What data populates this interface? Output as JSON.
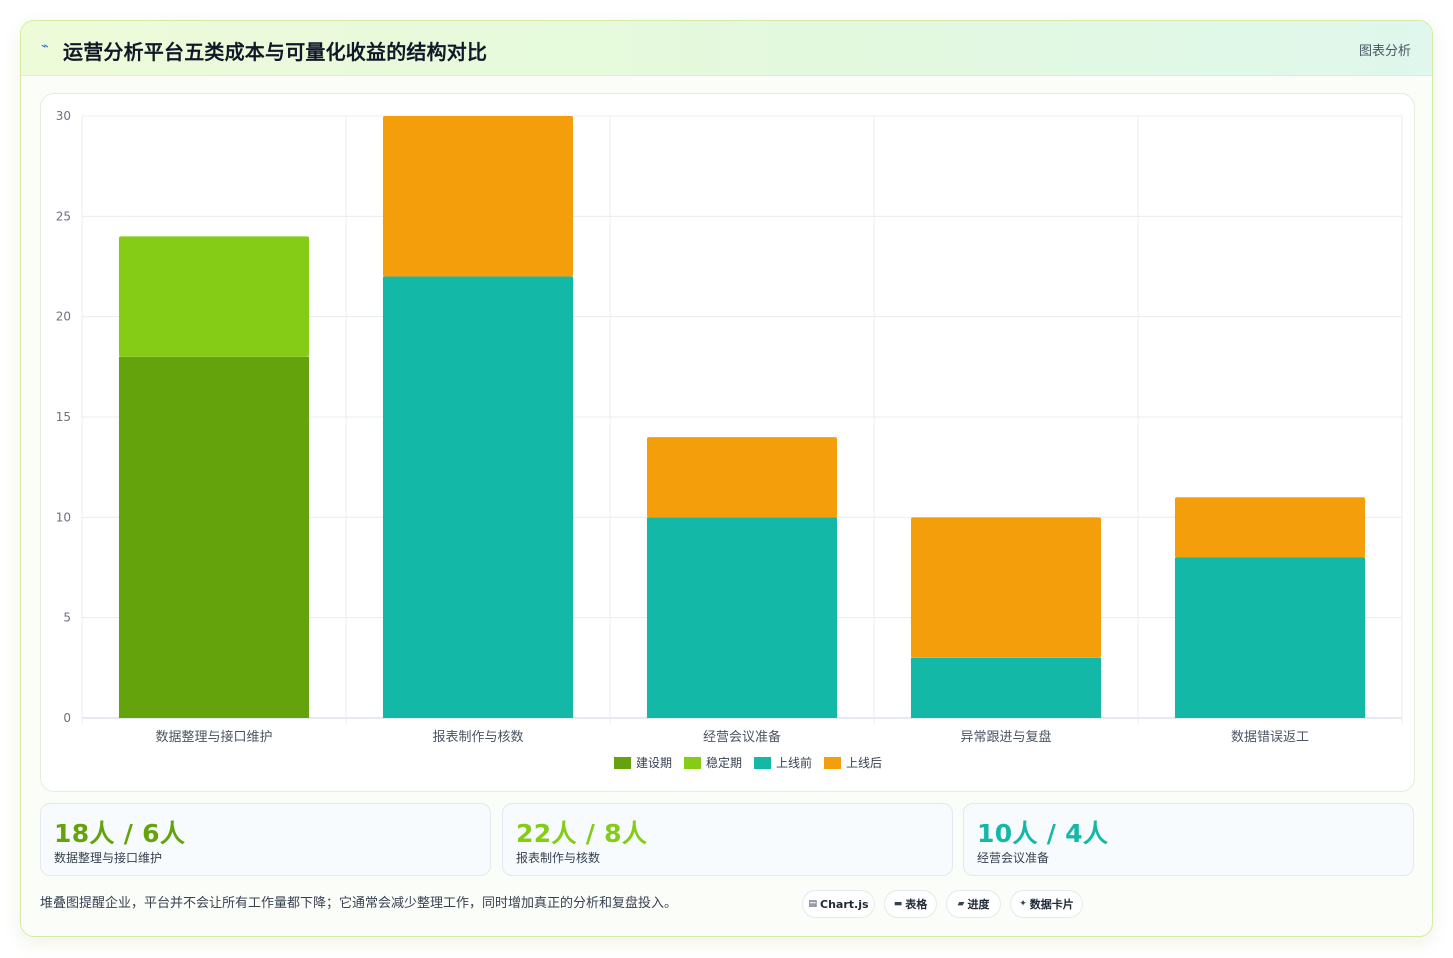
{
  "header": {
    "icon": "chart-line-icon",
    "title": "运营分析平台五类成本与可量化收益的结构对比",
    "tag": "图表分析"
  },
  "chart_data": {
    "type": "bar",
    "stacked": true,
    "categories": [
      "数据整理与接口维护",
      "报表制作与核数",
      "经营会议准备",
      "异常跟进与复盘",
      "数据错误返工"
    ],
    "series": [
      {
        "name": "建设期",
        "color": "#65a30d",
        "values": [
          18,
          null,
          null,
          null,
          null
        ]
      },
      {
        "name": "稳定期",
        "color": "#84cc16",
        "values": [
          6,
          null,
          null,
          null,
          null
        ]
      },
      {
        "name": "上线前",
        "color": "#14b8a6",
        "values": [
          null,
          22,
          10,
          3,
          8
        ]
      },
      {
        "name": "上线后",
        "color": "#f59e0b",
        "values": [
          null,
          8,
          4,
          7,
          3
        ]
      }
    ],
    "ylim": [
      0,
      30
    ],
    "yticks": [
      0,
      5,
      10,
      15,
      20,
      25,
      30
    ],
    "grid": true,
    "legend": "bottom-center"
  },
  "kpis": [
    {
      "value": "18人 / 6人",
      "label": "数据整理与接口维护",
      "color": "#65a30d"
    },
    {
      "value": "22人 / 8人",
      "label": "报表制作与核数",
      "color": "#84cc16"
    },
    {
      "value": "10人 / 4人",
      "label": "经营会议准备",
      "color": "#14b8a6"
    }
  ],
  "footer": {
    "note": "堆叠图提醒企业，平台并不会让所有工作量都下降；它通常会减少整理工作，同时增加真正的分析和复盘投入。",
    "pills": [
      {
        "icon": "chart-icon",
        "glyph": "▤",
        "label": "Chart.js"
      },
      {
        "icon": "table-icon",
        "glyph": "▬",
        "label": "表格"
      },
      {
        "icon": "progress-icon",
        "glyph": "▰",
        "label": "进度"
      },
      {
        "icon": "sparkle-icon",
        "glyph": "✦",
        "label": "数据卡片"
      }
    ]
  }
}
